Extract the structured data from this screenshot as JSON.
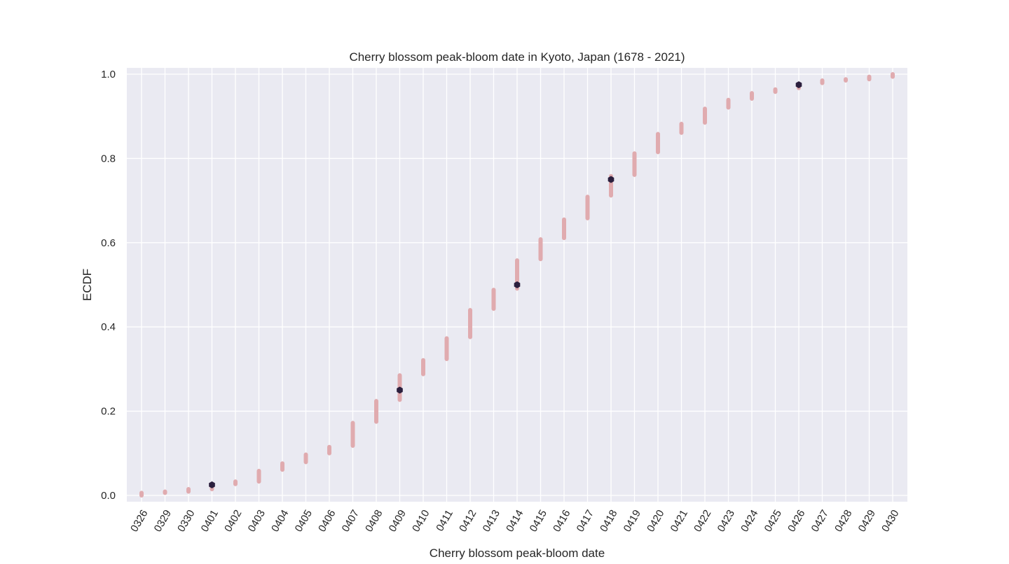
{
  "chart_data": {
    "type": "scatter",
    "title": "Cherry blossom peak-bloom date in Kyoto, Japan (1678 - 2021)",
    "xlabel": "Cherry blossom peak-bloom date",
    "ylabel": "ECDF",
    "ylim": [
      -0.015,
      1.015
    ],
    "yticks": [
      0.0,
      0.2,
      0.4,
      0.6,
      0.8,
      1.0
    ],
    "ytick_labels": [
      "0.0",
      "0.2",
      "0.4",
      "0.6",
      "0.8",
      "1.0"
    ],
    "categories": [
      "0326",
      "0329",
      "0330",
      "0401",
      "0402",
      "0403",
      "0404",
      "0405",
      "0406",
      "0407",
      "0408",
      "0409",
      "0410",
      "0411",
      "0412",
      "0413",
      "0414",
      "0415",
      "0416",
      "0417",
      "0418",
      "0419",
      "0420",
      "0421",
      "0422",
      "0423",
      "0424",
      "0425",
      "0426",
      "0427",
      "0428",
      "0429",
      "0430"
    ],
    "grid": true,
    "colors": {
      "background": "#eaeaf2",
      "grid": "#ffffff",
      "ecdf": "#e0abaf",
      "percentile": "#2b1f3e"
    },
    "series": [
      {
        "marker": "ecdf-range",
        "ranges": [
          [
            0.0,
            0.006
          ],
          [
            0.006,
            0.009
          ],
          [
            0.009,
            0.015
          ],
          [
            0.015,
            0.027
          ],
          [
            0.027,
            0.033
          ],
          [
            0.033,
            0.058
          ],
          [
            0.061,
            0.076
          ],
          [
            0.079,
            0.097
          ],
          [
            0.1,
            0.115
          ],
          [
            0.118,
            0.172
          ],
          [
            0.175,
            0.224
          ],
          [
            0.227,
            0.285
          ],
          [
            0.288,
            0.321
          ],
          [
            0.324,
            0.373
          ],
          [
            0.376,
            0.44
          ],
          [
            0.443,
            0.488
          ],
          [
            0.491,
            0.558
          ],
          [
            0.561,
            0.608
          ],
          [
            0.611,
            0.655
          ],
          [
            0.658,
            0.709
          ],
          [
            0.712,
            0.758
          ],
          [
            0.761,
            0.812
          ],
          [
            0.815,
            0.858
          ],
          [
            0.861,
            0.882
          ],
          [
            0.885,
            0.918
          ],
          [
            0.921,
            0.939
          ],
          [
            0.942,
            0.955
          ],
          [
            0.958,
            0.964
          ],
          [
            0.967,
            0.976
          ],
          [
            0.979,
            0.985
          ],
          [
            0.985,
            0.988
          ],
          [
            0.988,
            0.994
          ],
          [
            0.994,
            1.0
          ]
        ]
      },
      {
        "marker": "percentile",
        "points": [
          {
            "x": "0401",
            "y": 0.025
          },
          {
            "x": "0409",
            "y": 0.25
          },
          {
            "x": "0414",
            "y": 0.5
          },
          {
            "x": "0418",
            "y": 0.75
          },
          {
            "x": "0426",
            "y": 0.975
          }
        ]
      }
    ]
  }
}
